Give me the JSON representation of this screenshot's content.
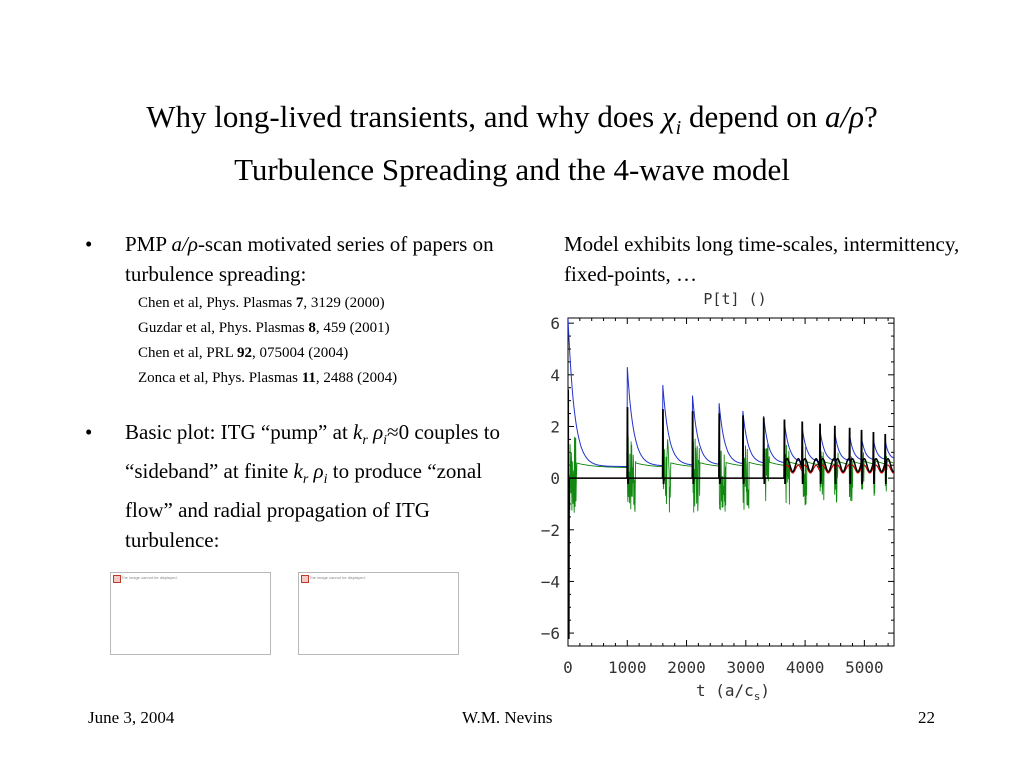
{
  "title": {
    "line1_prefix": "Why long-lived transients, and why does ",
    "chi": "χ",
    "chi_sub": "i",
    "line1_mid": " depend on ",
    "a_rho": "a/ρ",
    "line1_end": "?",
    "line2": "Turbulence Spreading and the 4-wave model"
  },
  "left": {
    "bullet1": {
      "marker": "•",
      "pre": "PMP ",
      "italic": "a/ρ",
      "post": "-scan motivated series of papers on turbulence spreading:"
    },
    "refs": [
      {
        "pre": "Chen et al, Phys. Plasmas ",
        "bold": "7",
        "post": ", 3129 (2000)"
      },
      {
        "pre": "Guzdar et al, Phys. Plasmas ",
        "bold": "8",
        "post": ", 459 (2001)"
      },
      {
        "pre": "Chen et al, PRL ",
        "bold": "92",
        "post": ", 075004 (2004)"
      },
      {
        "pre": "Zonca et al, Phys. Plasmas ",
        "bold": "11",
        "post": ", 2488 (2004)"
      }
    ],
    "bullet2": {
      "marker": "•",
      "t1": "Basic plot: ITG “pump” at ",
      "k": "k",
      "kr": "r",
      "rho": " ρ",
      "ri": "i",
      "t2": "≈0 couples to “sideband” at finite ",
      "k2": "k",
      "kr2": "r",
      "rho2": " ρ",
      "ri2": "i",
      "t3": " to produce “zonal flow” and radial propagation of ITG turbulence:"
    },
    "thumbnails": [
      {
        "caption": "The image cannot be displayed."
      },
      {
        "caption": "The image cannot be displayed."
      }
    ]
  },
  "right": {
    "caption": "Model exhibits long time-scales, intermittency, fixed-points, …"
  },
  "chart_data": {
    "type": "line",
    "title": "P[t] ()",
    "xlabel": "t (a/c",
    "xlabel_sub": "s",
    "xlabel_end": ")",
    "xlim": [
      0,
      5500
    ],
    "ylim": [
      -6.5,
      6.2
    ],
    "xticks": [
      0,
      1000,
      2000,
      3000,
      4000,
      5000
    ],
    "yticks": [
      6,
      4,
      2,
      0,
      -2,
      -4,
      -6
    ],
    "bursts": [
      {
        "t": 0,
        "peak": 6.2
      },
      {
        "t": 1000,
        "peak": 4.3
      },
      {
        "t": 1600,
        "peak": 3.6
      },
      {
        "t": 2100,
        "peak": 3.2
      },
      {
        "t": 2550,
        "peak": 2.9
      },
      {
        "t": 2950,
        "peak": 2.6
      },
      {
        "t": 3300,
        "peak": 2.4
      },
      {
        "t": 3650,
        "peak": 2.2
      },
      {
        "t": 3950,
        "peak": 2.0
      },
      {
        "t": 4250,
        "peak": 1.9
      },
      {
        "t": 4500,
        "peak": 1.8
      },
      {
        "t": 4750,
        "peak": 1.7
      },
      {
        "t": 4950,
        "peak": 1.6
      },
      {
        "t": 5150,
        "peak": 1.55
      },
      {
        "t": 5350,
        "peak": 1.5
      }
    ],
    "series": [
      {
        "color": "#2233cc"
      },
      {
        "color": "#118811"
      },
      {
        "color": "#000000"
      },
      {
        "color": "#cc0000"
      }
    ]
  },
  "footer": {
    "date": "June 3, 2004",
    "author": "W.M. Nevins",
    "page": "22"
  }
}
